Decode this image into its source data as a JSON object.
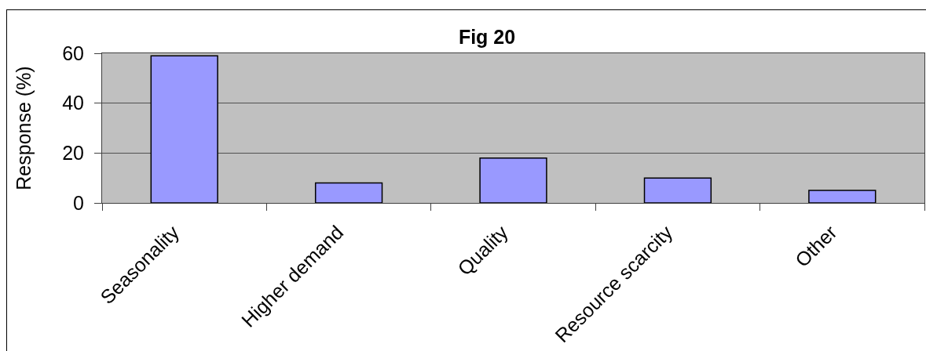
{
  "chart_data": {
    "type": "bar",
    "title": "Fig 20",
    "ylabel": "Response (%)",
    "categories": [
      "Seasonality",
      "Higher demand",
      "Quality",
      "Resource scarcity",
      "Other"
    ],
    "values": [
      59,
      8,
      18,
      10,
      5
    ],
    "color": "#9999ff",
    "ylim": [
      0,
      60
    ],
    "yticks": [
      0,
      20,
      40,
      60
    ],
    "grid": "y"
  }
}
